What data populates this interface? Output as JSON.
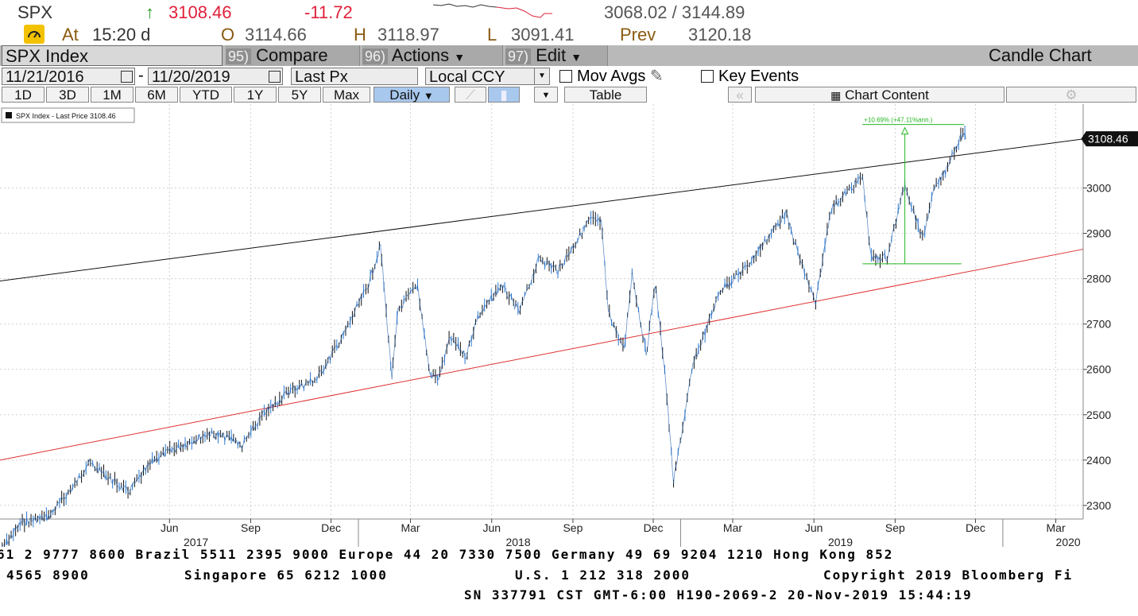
{
  "header": {
    "ticker": "SPX",
    "arrow": "↑",
    "last": "3108.46",
    "change": "-11.72",
    "range": "3068.02 / 3144.89",
    "at_label": "At",
    "time": "15:20 d",
    "open_label": "O",
    "open": "3114.66",
    "high_label": "H",
    "high": "3118.97",
    "low_label": "L",
    "low": "3091.41",
    "prev_label": "Prev",
    "prev": "3120.18"
  },
  "toolbar": {
    "security": "SPX Index",
    "compare_num": "95)",
    "compare": "Compare",
    "actions_num": "96)",
    "actions": "Actions",
    "edit_num": "97)",
    "edit": "Edit",
    "chart_type": "Candle Chart",
    "start_date": "11/21/2016",
    "dash": "-",
    "end_date": "11/20/2019",
    "field": "Last Px",
    "currency": "Local CCY",
    "mov_avgs": "Mov Avgs",
    "key_events": "Key Events",
    "periods": [
      "1D",
      "3D",
      "1M",
      "6M",
      "YTD",
      "1Y",
      "5Y",
      "Max"
    ],
    "frequency": "Daily",
    "table": "Table",
    "chart_content": "Chart Content"
  },
  "chart_data": {
    "type": "candlestick",
    "legend": "SPX Index - Last Price 3108.46",
    "last_label": "3108.46",
    "annotation": "+10.69% (+47.11%ann.)",
    "ylim": [
      2270,
      3185
    ],
    "yticks": [
      "2300",
      "2400",
      "2500",
      "2600",
      "2700",
      "2800",
      "2900",
      "3000"
    ],
    "xlim": [
      "2016-11-21",
      "2020-04-01"
    ],
    "month_ticks": [
      {
        "label": "Jun",
        "date": "2017-06-01"
      },
      {
        "label": "Sep",
        "date": "2017-09-01"
      },
      {
        "label": "Dec",
        "date": "2017-12-01"
      },
      {
        "label": "Mar",
        "date": "2018-03-01"
      },
      {
        "label": "Jun",
        "date": "2018-06-01"
      },
      {
        "label": "Sep",
        "date": "2018-09-01"
      },
      {
        "label": "Dec",
        "date": "2018-12-01"
      },
      {
        "label": "Mar",
        "date": "2019-03-01"
      },
      {
        "label": "Jun",
        "date": "2019-06-01"
      },
      {
        "label": "Sep",
        "date": "2019-09-01"
      },
      {
        "label": "Dec",
        "date": "2019-12-01"
      },
      {
        "label": "Mar",
        "date": "2020-03-01"
      }
    ],
    "year_ticks": [
      {
        "label": "2017",
        "date": "2017-07-01"
      },
      {
        "label": "2018",
        "date": "2018-07-01"
      },
      {
        "label": "2019",
        "date": "2019-07-01"
      },
      {
        "label": "2020",
        "date": "2020-03-15"
      }
    ],
    "price_series": [
      {
        "date": "2016-11-21",
        "close": 2198
      },
      {
        "date": "2016-12-15",
        "close": 2262
      },
      {
        "date": "2017-01-15",
        "close": 2275
      },
      {
        "date": "2017-02-15",
        "close": 2349
      },
      {
        "date": "2017-03-01",
        "close": 2395
      },
      {
        "date": "2017-04-15",
        "close": 2329
      },
      {
        "date": "2017-05-15",
        "close": 2402
      },
      {
        "date": "2017-06-15",
        "close": 2433
      },
      {
        "date": "2017-07-15",
        "close": 2459
      },
      {
        "date": "2017-08-15",
        "close": 2445
      },
      {
        "date": "2017-08-21",
        "close": 2428
      },
      {
        "date": "2017-09-15",
        "close": 2500
      },
      {
        "date": "2017-10-15",
        "close": 2553
      },
      {
        "date": "2017-11-15",
        "close": 2579
      },
      {
        "date": "2017-12-15",
        "close": 2675
      },
      {
        "date": "2018-01-12",
        "close": 2786
      },
      {
        "date": "2018-01-26",
        "close": 2872
      },
      {
        "date": "2018-02-08",
        "close": 2581
      },
      {
        "date": "2018-02-15",
        "close": 2731
      },
      {
        "date": "2018-03-09",
        "close": 2786
      },
      {
        "date": "2018-03-23",
        "close": 2588
      },
      {
        "date": "2018-04-02",
        "close": 2581
      },
      {
        "date": "2018-04-15",
        "close": 2670
      },
      {
        "date": "2018-05-03",
        "close": 2629
      },
      {
        "date": "2018-05-15",
        "close": 2711
      },
      {
        "date": "2018-06-12",
        "close": 2786
      },
      {
        "date": "2018-07-02",
        "close": 2726
      },
      {
        "date": "2018-07-25",
        "close": 2846
      },
      {
        "date": "2018-08-15",
        "close": 2818
      },
      {
        "date": "2018-09-20",
        "close": 2930
      },
      {
        "date": "2018-10-03",
        "close": 2925
      },
      {
        "date": "2018-10-11",
        "close": 2728
      },
      {
        "date": "2018-10-29",
        "close": 2641
      },
      {
        "date": "2018-11-07",
        "close": 2813
      },
      {
        "date": "2018-11-23",
        "close": 2633
      },
      {
        "date": "2018-12-03",
        "close": 2790
      },
      {
        "date": "2018-12-14",
        "close": 2599
      },
      {
        "date": "2018-12-24",
        "close": 2351
      },
      {
        "date": "2019-01-15",
        "close": 2610
      },
      {
        "date": "2019-02-15",
        "close": 2775
      },
      {
        "date": "2019-03-15",
        "close": 2822
      },
      {
        "date": "2019-04-15",
        "close": 2905
      },
      {
        "date": "2019-04-30",
        "close": 2945
      },
      {
        "date": "2019-05-15",
        "close": 2850
      },
      {
        "date": "2019-06-03",
        "close": 2744
      },
      {
        "date": "2019-06-20",
        "close": 2954
      },
      {
        "date": "2019-07-26",
        "close": 3025
      },
      {
        "date": "2019-08-05",
        "close": 2844
      },
      {
        "date": "2019-08-15",
        "close": 2847
      },
      {
        "date": "2019-08-23",
        "close": 2847
      },
      {
        "date": "2019-09-12",
        "close": 3009
      },
      {
        "date": "2019-10-02",
        "close": 2887
      },
      {
        "date": "2019-10-15",
        "close": 2995
      },
      {
        "date": "2019-10-28",
        "close": 3039
      },
      {
        "date": "2019-11-07",
        "close": 3085
      },
      {
        "date": "2019-11-18",
        "close": 3122
      },
      {
        "date": "2019-11-20",
        "close": 3108
      }
    ],
    "trendlines": [
      {
        "name": "upper",
        "color": "#111111",
        "from": {
          "date": "2016-11-21",
          "value": 2795
        },
        "to": {
          "date": "2020-04-01",
          "value": 3108
        }
      },
      {
        "name": "lower",
        "color": "#e03030",
        "from": {
          "date": "2016-11-21",
          "value": 2400
        },
        "to": {
          "date": "2020-04-01",
          "value": 2865
        }
      }
    ]
  },
  "footer": {
    "line1": "61 2 9777 8600 Brazil 5511 2395 9000 Europe 44 20 7330 7500 Germany 49 69 9204 1210 Hong Kong 852",
    "line2a": "4565 8900",
    "line2b": "Singapore 65 6212 1000",
    "line2c": "U.S. 1 212 318 2000",
    "line2d": "Copyright 2019 Bloomberg Fi",
    "line3": "SN 337791 CST  GMT-6:00 H190-2069-2 20-Nov-2019 15:44:19"
  }
}
